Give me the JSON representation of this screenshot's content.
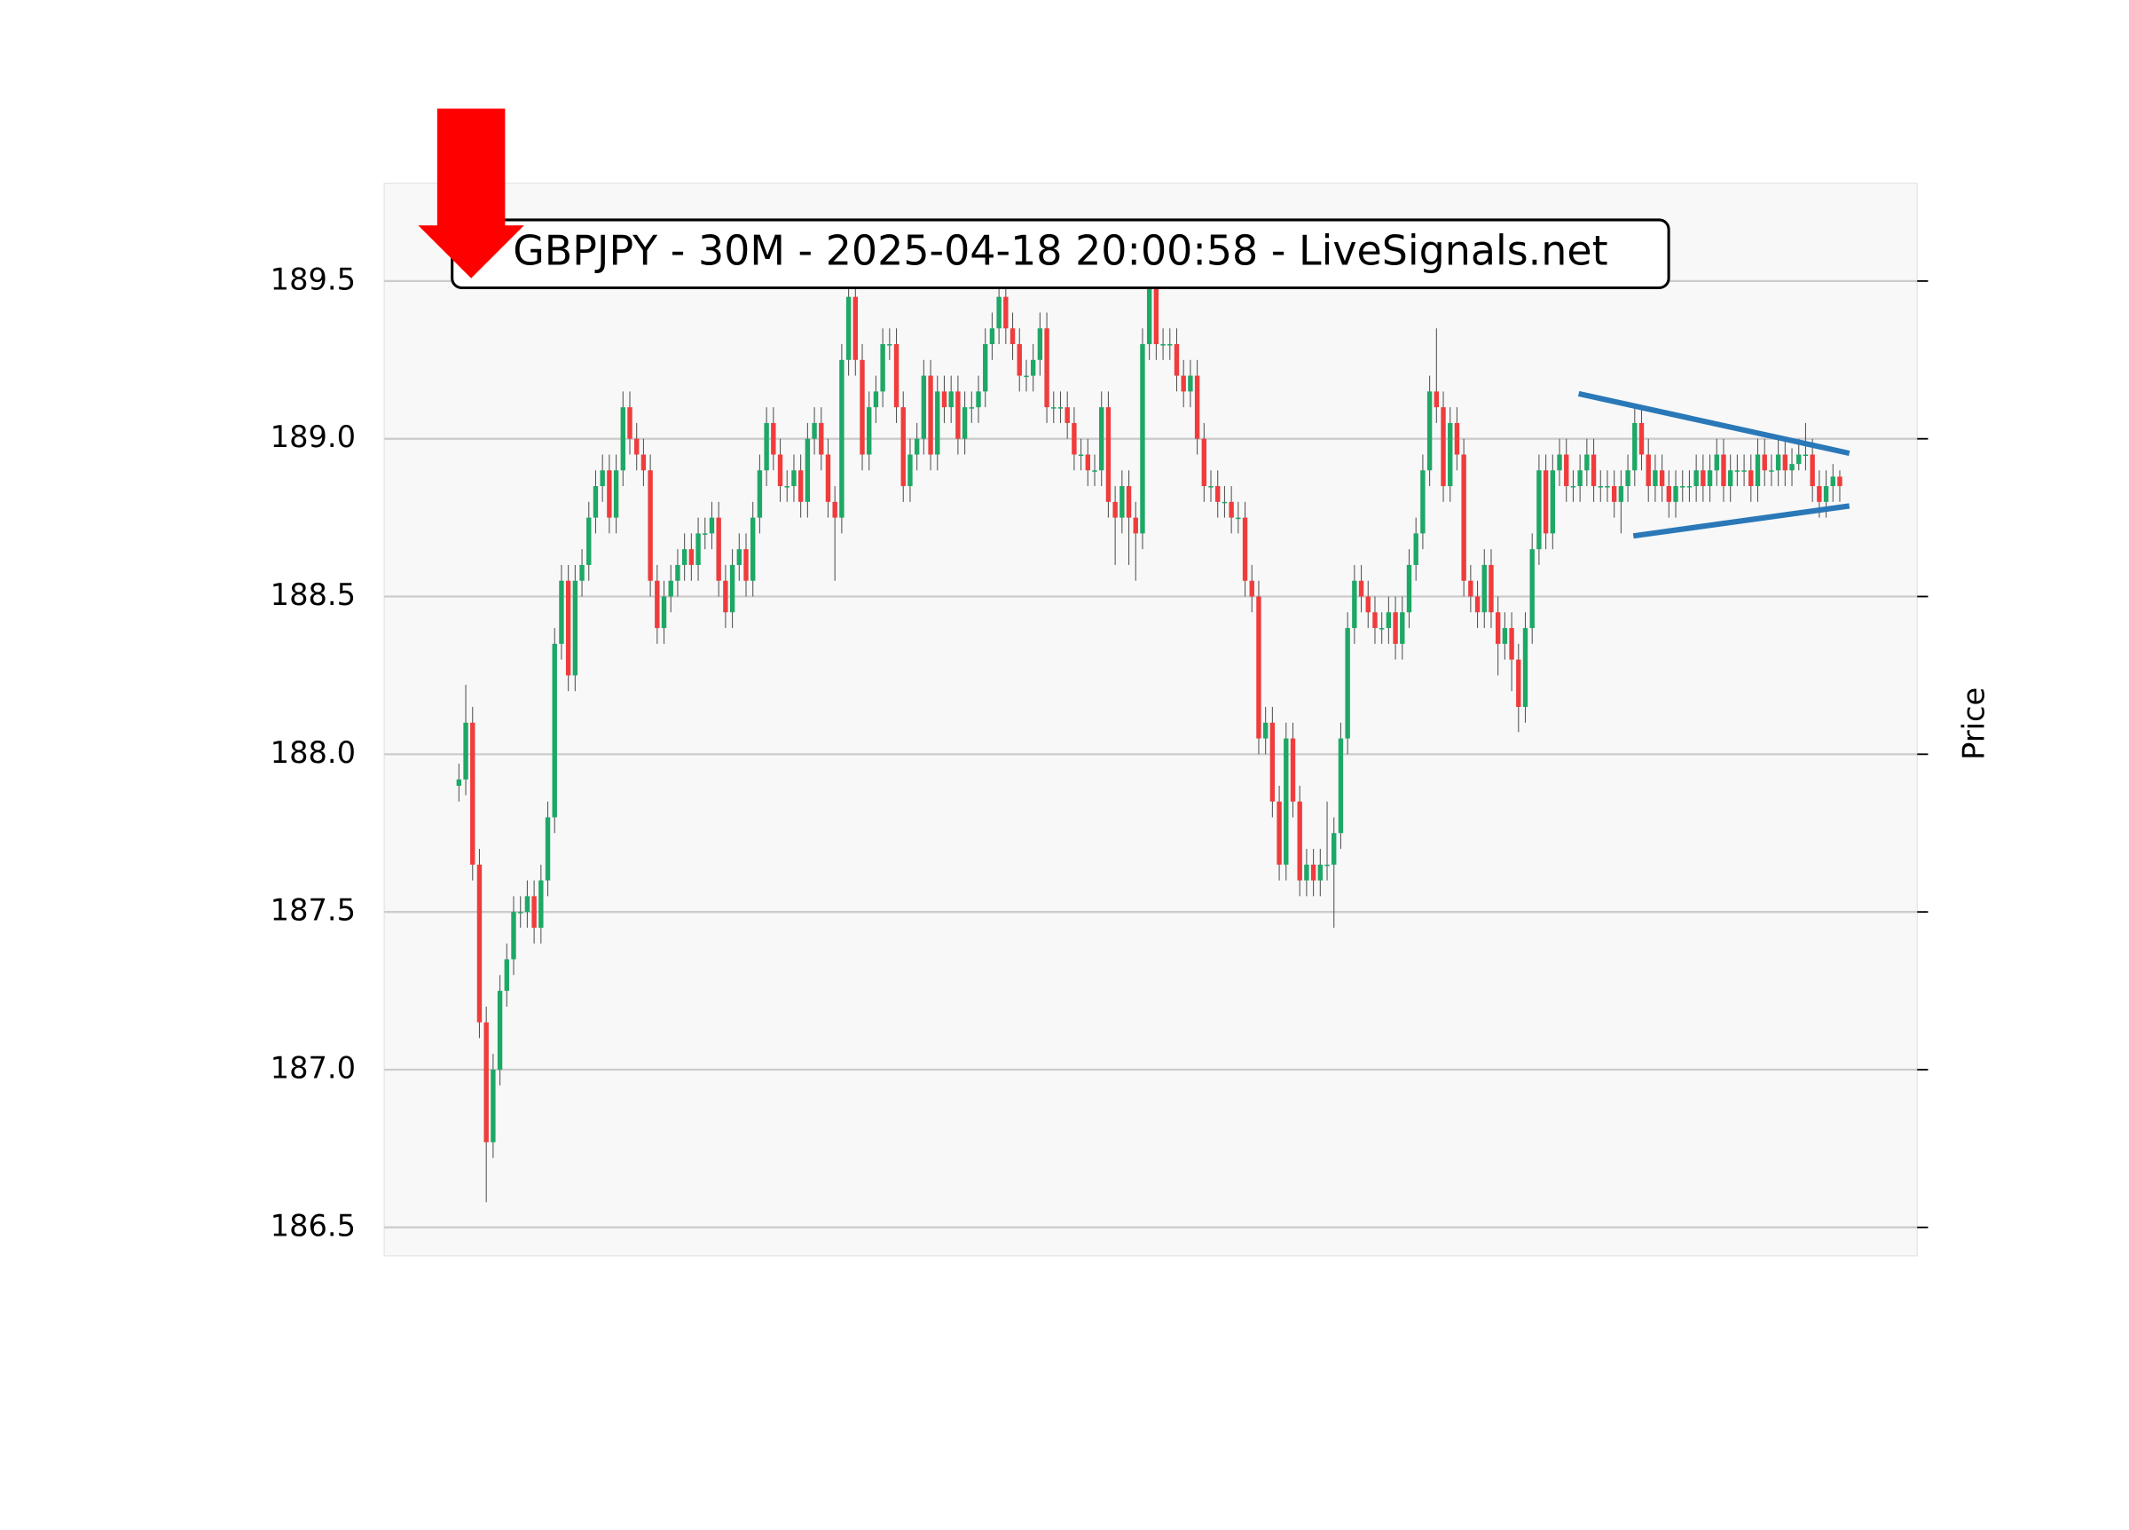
{
  "chart_data": {
    "type": "candlestick",
    "title": "GBPJPY - 30M - 2025-04-18 20:00:58 - LiveSignals.net",
    "ylabel": "Price",
    "up_color": "#1ea866",
    "down_color": "#f03c3c",
    "grid": true,
    "ylim": [
      186.41,
      189.81
    ],
    "yticks": [
      186.5,
      {
        "value": 187,
        "label": "187.0"
      },
      187.5,
      {
        "value": 188,
        "label": "188.0"
      },
      188.5,
      {
        "value": 189,
        "label": "189.0"
      },
      189.5
    ],
    "open": [
      187.9,
      187.92,
      188.1,
      187.65,
      187.15,
      186.77,
      187.0,
      187.25,
      187.35,
      187.5,
      187.5,
      187.55,
      187.45,
      187.6,
      187.8,
      188.35,
      188.55,
      188.25,
      188.55,
      188.6,
      188.75,
      188.85,
      188.9,
      188.75,
      188.9,
      189.1,
      189.0,
      188.95,
      188.9,
      188.55,
      188.4,
      188.5,
      188.55,
      188.6,
      188.65,
      188.6,
      188.7,
      188.7,
      188.75,
      188.55,
      188.45,
      188.6,
      188.65,
      188.55,
      188.75,
      188.9,
      189.05,
      188.95,
      188.85,
      188.85,
      188.9,
      188.8,
      189.0,
      189.05,
      188.95,
      188.8,
      188.75,
      189.25,
      189.45,
      189.25,
      188.95,
      189.1,
      189.15,
      189.3,
      189.3,
      189.1,
      188.85,
      188.95,
      189.0,
      189.2,
      188.95,
      189.15,
      189.1,
      189.15,
      189.0,
      189.1,
      189.1,
      189.15,
      189.3,
      189.35,
      189.45,
      189.35,
      189.3,
      189.2,
      189.2,
      189.25,
      189.35,
      189.1,
      189.1,
      189.1,
      189.05,
      188.95,
      188.95,
      188.9,
      188.9,
      189.1,
      188.8,
      188.75,
      188.85,
      188.75,
      188.7,
      189.3,
      189.5,
      189.3,
      189.3,
      189.3,
      189.2,
      189.15,
      189.2,
      189.0,
      188.85,
      188.85,
      188.8,
      188.8,
      188.75,
      188.75,
      188.55,
      188.5,
      188.05,
      188.1,
      187.85,
      187.65,
      188.05,
      187.85,
      187.6,
      187.65,
      187.6,
      187.65,
      187.65,
      187.75,
      188.05,
      188.4,
      188.55,
      188.5,
      188.45,
      188.4,
      188.4,
      188.45,
      188.35,
      188.45,
      188.6,
      188.7,
      188.9,
      189.15,
      189.1,
      188.85,
      189.05,
      188.95,
      188.55,
      188.5,
      188.45,
      188.6,
      188.45,
      188.35,
      188.4,
      188.3,
      188.15,
      188.4,
      188.65,
      188.9,
      188.7,
      188.9,
      188.95,
      188.85,
      188.85,
      188.9,
      188.95,
      188.85,
      188.85,
      188.85,
      188.8,
      188.85,
      188.9,
      189.05,
      188.95,
      188.85,
      188.9,
      188.85,
      188.8,
      188.85,
      188.85,
      188.85,
      188.9,
      188.85,
      188.9,
      188.95,
      188.85,
      188.9,
      188.9,
      188.9,
      188.85,
      188.95,
      188.9,
      188.9,
      188.95,
      188.9,
      188.92,
      188.95,
      188.95,
      188.85,
      188.8,
      188.85,
      188.88
    ],
    "high": [
      187.97,
      188.22,
      188.15,
      187.7,
      187.2,
      187.05,
      187.3,
      187.4,
      187.55,
      187.55,
      187.6,
      187.6,
      187.65,
      187.85,
      188.4,
      188.6,
      188.6,
      188.6,
      188.65,
      188.8,
      188.9,
      188.95,
      188.95,
      188.95,
      189.15,
      189.15,
      189.05,
      189.0,
      188.95,
      188.6,
      188.55,
      188.6,
      188.65,
      188.7,
      188.7,
      188.75,
      188.75,
      188.8,
      188.8,
      188.6,
      188.65,
      188.7,
      188.7,
      188.8,
      188.95,
      189.1,
      189.1,
      189.0,
      188.9,
      188.95,
      188.95,
      189.05,
      189.1,
      189.1,
      189.0,
      188.85,
      189.3,
      189.5,
      189.5,
      189.3,
      189.15,
      189.2,
      189.35,
      189.35,
      189.35,
      189.15,
      189.0,
      189.05,
      189.25,
      189.25,
      189.2,
      189.2,
      189.2,
      189.2,
      189.15,
      189.15,
      189.2,
      189.35,
      189.4,
      189.55,
      189.5,
      189.4,
      189.35,
      189.25,
      189.3,
      189.4,
      189.4,
      189.15,
      189.15,
      189.15,
      189.1,
      189.0,
      189.0,
      188.95,
      189.15,
      189.15,
      188.85,
      188.9,
      188.9,
      188.8,
      189.35,
      189.55,
      189.55,
      189.35,
      189.35,
      189.35,
      189.25,
      189.25,
      189.25,
      189.05,
      188.9,
      188.9,
      188.85,
      188.85,
      188.8,
      188.8,
      188.6,
      188.55,
      188.15,
      188.15,
      187.9,
      188.1,
      188.1,
      187.9,
      187.7,
      187.7,
      187.7,
      187.85,
      187.8,
      188.1,
      188.45,
      188.6,
      188.6,
      188.55,
      188.5,
      188.45,
      188.5,
      188.5,
      188.5,
      188.65,
      188.75,
      188.95,
      189.2,
      189.35,
      189.15,
      189.1,
      189.1,
      189.0,
      188.6,
      188.55,
      188.65,
      188.65,
      188.5,
      188.45,
      188.45,
      188.35,
      188.45,
      188.7,
      188.95,
      188.95,
      188.95,
      189.0,
      189.0,
      188.9,
      188.95,
      189.0,
      189.0,
      188.9,
      188.9,
      188.9,
      188.9,
      188.95,
      189.1,
      189.1,
      189.0,
      188.95,
      188.95,
      188.9,
      188.9,
      188.9,
      188.9,
      188.95,
      188.95,
      188.95,
      189.0,
      189.0,
      188.95,
      188.95,
      188.95,
      188.95,
      189.0,
      189.0,
      188.95,
      189.0,
      189.0,
      188.97,
      189.0,
      189.05,
      189.0,
      188.9,
      188.9,
      188.92,
      188.9
    ],
    "low": [
      187.85,
      187.87,
      187.6,
      187.1,
      186.58,
      186.72,
      186.95,
      187.2,
      187.3,
      187.45,
      187.45,
      187.4,
      187.4,
      187.55,
      187.75,
      188.3,
      188.2,
      188.2,
      188.5,
      188.55,
      188.7,
      188.8,
      188.7,
      188.7,
      188.85,
      188.95,
      188.9,
      188.85,
      188.5,
      188.35,
      188.35,
      188.45,
      188.5,
      188.55,
      188.55,
      188.55,
      188.65,
      188.65,
      188.5,
      188.4,
      188.4,
      188.55,
      188.5,
      188.5,
      188.7,
      188.85,
      188.9,
      188.8,
      188.8,
      188.8,
      188.75,
      188.75,
      188.95,
      188.9,
      188.75,
      188.55,
      188.7,
      189.2,
      189.2,
      188.9,
      188.9,
      189.05,
      189.1,
      189.25,
      189.05,
      188.8,
      188.8,
      188.9,
      188.95,
      188.9,
      188.9,
      189.05,
      189.05,
      188.95,
      188.95,
      189.05,
      189.05,
      189.1,
      189.25,
      189.3,
      189.3,
      189.25,
      189.15,
      189.15,
      189.15,
      189.2,
      189.05,
      189.05,
      189.05,
      189.0,
      188.9,
      188.9,
      188.85,
      188.85,
      188.85,
      188.75,
      188.6,
      188.7,
      188.6,
      188.55,
      188.65,
      189.25,
      189.25,
      189.25,
      189.25,
      189.15,
      189.1,
      189.1,
      188.95,
      188.8,
      188.8,
      188.75,
      188.75,
      188.7,
      188.7,
      188.5,
      188.45,
      188.0,
      188.0,
      187.8,
      187.6,
      187.6,
      187.8,
      187.55,
      187.55,
      187.55,
      187.55,
      187.6,
      187.45,
      187.7,
      188.0,
      188.35,
      188.45,
      188.4,
      188.35,
      188.35,
      188.35,
      188.3,
      188.3,
      188.4,
      188.55,
      188.65,
      188.85,
      189.05,
      188.8,
      188.8,
      188.9,
      188.5,
      188.45,
      188.4,
      188.4,
      188.4,
      188.25,
      188.3,
      188.2,
      188.07,
      188.1,
      188.35,
      188.6,
      188.65,
      188.65,
      188.85,
      188.8,
      188.8,
      188.8,
      188.85,
      188.8,
      188.8,
      188.8,
      188.75,
      188.7,
      188.8,
      188.85,
      188.9,
      188.8,
      188.8,
      188.8,
      188.75,
      188.75,
      188.8,
      188.8,
      188.8,
      188.8,
      188.8,
      188.85,
      188.8,
      188.8,
      188.85,
      188.85,
      188.8,
      188.8,
      188.85,
      188.85,
      188.85,
      188.85,
      188.85,
      188.9,
      188.9,
      188.8,
      188.75,
      188.75,
      188.8,
      188.8
    ],
    "close": [
      187.92,
      188.1,
      187.65,
      187.15,
      186.77,
      187.0,
      187.25,
      187.35,
      187.5,
      187.5,
      187.55,
      187.45,
      187.6,
      187.8,
      188.35,
      188.55,
      188.25,
      188.55,
      188.6,
      188.75,
      188.85,
      188.9,
      188.75,
      188.9,
      189.1,
      189.0,
      188.95,
      188.9,
      188.55,
      188.4,
      188.5,
      188.55,
      188.6,
      188.65,
      188.6,
      188.7,
      188.7,
      188.75,
      188.55,
      188.45,
      188.6,
      188.65,
      188.55,
      188.75,
      188.9,
      189.05,
      188.95,
      188.85,
      188.85,
      188.9,
      188.8,
      189.0,
      189.05,
      188.95,
      188.8,
      188.75,
      189.25,
      189.45,
      189.25,
      188.95,
      189.1,
      189.15,
      189.3,
      189.3,
      189.1,
      188.85,
      188.95,
      189.0,
      189.2,
      188.95,
      189.15,
      189.1,
      189.15,
      189.0,
      189.1,
      189.1,
      189.15,
      189.3,
      189.35,
      189.45,
      189.35,
      189.3,
      189.2,
      189.2,
      189.25,
      189.35,
      189.1,
      189.1,
      189.1,
      189.05,
      188.95,
      188.95,
      188.9,
      188.9,
      189.1,
      188.8,
      188.75,
      188.85,
      188.75,
      188.7,
      189.3,
      189.5,
      189.3,
      189.3,
      189.3,
      189.2,
      189.15,
      189.2,
      189.0,
      188.85,
      188.85,
      188.8,
      188.8,
      188.75,
      188.75,
      188.55,
      188.5,
      188.05,
      188.1,
      187.85,
      187.65,
      188.05,
      187.85,
      187.6,
      187.65,
      187.6,
      187.65,
      187.65,
      187.75,
      188.05,
      188.4,
      188.55,
      188.5,
      188.45,
      188.4,
      188.4,
      188.45,
      188.35,
      188.45,
      188.6,
      188.7,
      188.9,
      189.15,
      189.1,
      188.85,
      189.05,
      188.95,
      188.55,
      188.5,
      188.45,
      188.6,
      188.45,
      188.35,
      188.4,
      188.3,
      188.15,
      188.4,
      188.65,
      188.9,
      188.7,
      188.9,
      188.95,
      188.85,
      188.85,
      188.9,
      188.95,
      188.85,
      188.85,
      188.85,
      188.8,
      188.85,
      188.9,
      189.05,
      188.95,
      188.85,
      188.9,
      188.85,
      188.8,
      188.85,
      188.85,
      188.85,
      188.9,
      188.85,
      188.9,
      188.95,
      188.85,
      188.9,
      188.9,
      188.9,
      188.85,
      188.95,
      188.9,
      188.9,
      188.95,
      188.9,
      188.92,
      188.95,
      188.95,
      188.85,
      188.8,
      188.85,
      188.88,
      188.85
    ],
    "trendlines": [
      {
        "color": "#2a78b8",
        "x": [
          163.8,
          203.4
        ],
        "y": [
          189.143,
          188.954
        ]
      },
      {
        "color": "#2a78b8",
        "x": [
          171.8,
          203.4
        ],
        "y": [
          188.692,
          188.787
        ]
      }
    ]
  }
}
